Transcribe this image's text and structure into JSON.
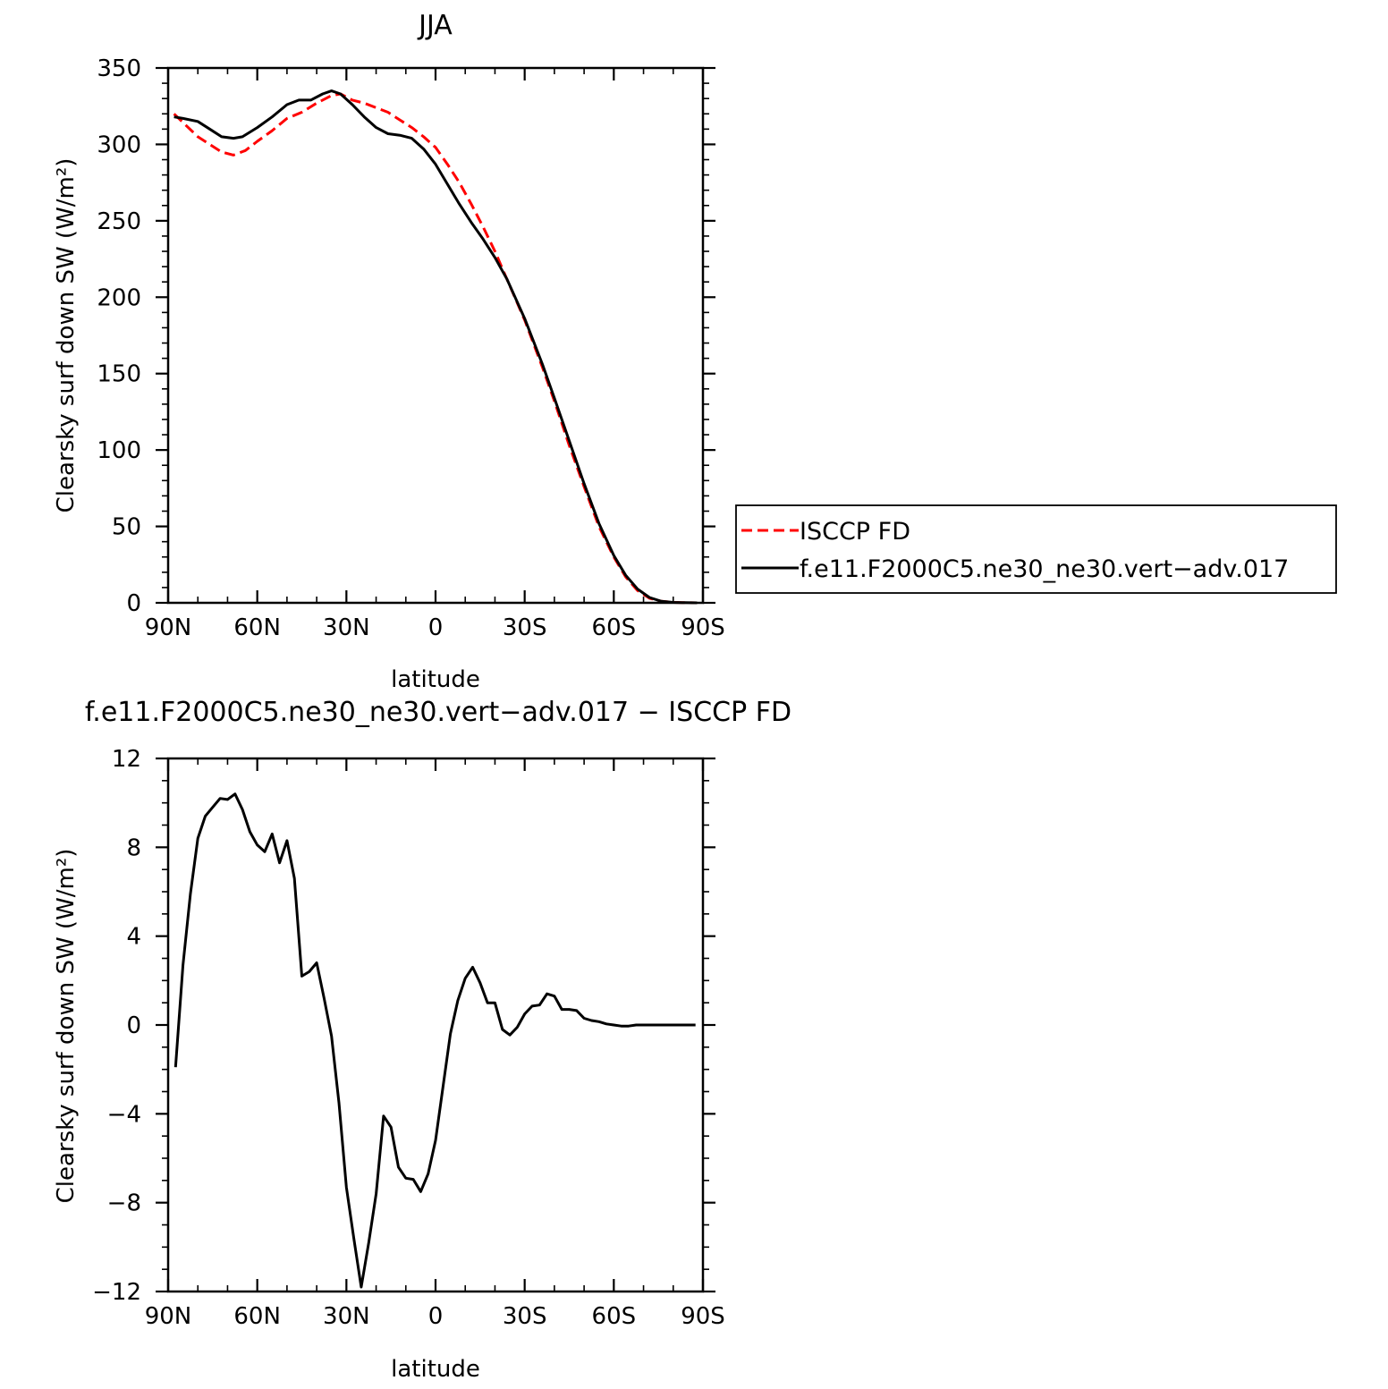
{
  "chart_data": [
    {
      "type": "line",
      "title": "JJA",
      "xlabel": "latitude",
      "ylabel": "Clearsky surf down SW (W/m²)",
      "xlim": [
        90,
        -90
      ],
      "ylim": [
        0,
        350
      ],
      "xticks": [
        90,
        60,
        30,
        0,
        -30,
        -60,
        -90
      ],
      "xtick_labels": [
        "90N",
        "60N",
        "30N",
        "0",
        "30S",
        "60S",
        "90S"
      ],
      "yticks": [
        0,
        50,
        100,
        150,
        200,
        250,
        300,
        350
      ],
      "ytick_labels": [
        "0",
        "50",
        "100",
        "150",
        "200",
        "250",
        "300",
        "350"
      ],
      "grid": false,
      "legend": "right",
      "series": [
        {
          "name": "ISCCP FD",
          "color": "#ff0000",
          "style": "dashed",
          "x": [
            88,
            80,
            72,
            68,
            64,
            60,
            55,
            50,
            45,
            40,
            35,
            32,
            28,
            24,
            20,
            16,
            12,
            8,
            4,
            0,
            -4,
            -8,
            -12,
            -16,
            -20,
            -24,
            -30,
            -36,
            -40,
            -45,
            -50,
            -55,
            -60,
            -64,
            -68,
            -72,
            -76,
            -80,
            -84,
            -88
          ],
          "y": [
            320,
            305,
            295,
            293,
            296,
            302,
            309,
            317,
            321,
            327,
            332,
            333,
            329,
            327,
            324,
            321,
            316,
            311,
            305,
            298,
            287,
            275,
            261,
            246,
            230,
            212,
            185,
            154,
            132,
            103,
            76,
            50,
            30,
            17,
            8,
            3,
            1,
            0.3,
            0.1,
            0
          ],
          "values": [
            320,
            305,
            295,
            293,
            296,
            302,
            309,
            317,
            321,
            327,
            332,
            333,
            329,
            327,
            324,
            321,
            316,
            311,
            305,
            298,
            287,
            275,
            261,
            246,
            230,
            212,
            185,
            154,
            132,
            103,
            76,
            50,
            30,
            17,
            8,
            3,
            1,
            0.3,
            0.1,
            0
          ]
        },
        {
          "name": "f.e11.F2000C5.ne30_ne30.vert−adv.017",
          "color": "#000000",
          "style": "solid",
          "x": [
            88,
            85,
            80,
            76,
            72,
            68,
            65,
            60,
            55,
            50,
            46,
            42,
            38,
            35,
            32,
            28,
            24,
            20,
            16,
            12,
            8,
            4,
            0,
            -4,
            -8,
            -12,
            -16,
            -20,
            -24,
            -30,
            -36,
            -40,
            -45,
            -50,
            -55,
            -60,
            -64,
            -68,
            -72,
            -76,
            -80,
            -84,
            -88
          ],
          "y": [
            318,
            317,
            315,
            310,
            305,
            304,
            305,
            311,
            318,
            326,
            329,
            329,
            333,
            335,
            333,
            326,
            318,
            311,
            307,
            306,
            304,
            297,
            287,
            274,
            261,
            249,
            238,
            226,
            212,
            186,
            156,
            134,
            106,
            78,
            52,
            31,
            18,
            9,
            3.5,
            1,
            0.3,
            0.1,
            0
          ],
          "values": [
            318,
            317,
            315,
            310,
            305,
            304,
            305,
            311,
            318,
            326,
            329,
            329,
            333,
            335,
            333,
            326,
            318,
            311,
            307,
            306,
            304,
            297,
            287,
            274,
            261,
            249,
            238,
            226,
            212,
            186,
            156,
            134,
            106,
            78,
            52,
            31,
            18,
            9,
            3.5,
            1,
            0.3,
            0.1,
            0
          ]
        }
      ]
    },
    {
      "type": "line",
      "title": "f.e11.F2000C5.ne30_ne30.vert−adv.017 − ISCCP FD",
      "xlabel": "latitude",
      "ylabel": "Clearsky surf down SW (W/m²)",
      "xlim": [
        90,
        -90
      ],
      "ylim": [
        -12,
        12
      ],
      "xticks": [
        90,
        60,
        30,
        0,
        -30,
        -60,
        -90
      ],
      "xtick_labels": [
        "90N",
        "60N",
        "30N",
        "0",
        "30S",
        "60S",
        "90S"
      ],
      "yticks": [
        -12,
        -8,
        -4,
        0,
        4,
        8,
        12
      ],
      "ytick_labels": [
        "−12",
        "−8",
        "−4",
        "0",
        "4",
        "8",
        "12"
      ],
      "grid": false,
      "series": [
        {
          "color": "#000000",
          "style": "solid",
          "x": [
            87.5,
            85,
            82.5,
            80,
            77.5,
            75,
            72.5,
            70,
            67.5,
            65,
            62.5,
            60,
            57.5,
            55,
            52.5,
            50,
            47.5,
            45,
            42.5,
            40,
            37.5,
            35,
            32.5,
            30,
            27.5,
            25,
            22.5,
            20,
            17.5,
            15,
            12.5,
            10,
            7.5,
            5,
            2.5,
            0,
            -2.5,
            -5,
            -7.5,
            -10,
            -12.5,
            -15,
            -17.5,
            -20,
            -22.5,
            -25,
            -27.5,
            -30,
            -32.5,
            -35,
            -37.5,
            -40,
            -42.5,
            -45,
            -47.5,
            -50,
            -52.5,
            -55,
            -57.5,
            -60,
            -62.5,
            -65,
            -67.5,
            -70,
            -72.5,
            -75,
            -77.5,
            -80,
            -82.5,
            -85,
            -87.5
          ],
          "y": [
            -1.9,
            2.7,
            5.9,
            8.4,
            9.4,
            9.8,
            10.2,
            10.15,
            10.4,
            9.7,
            8.7,
            8.1,
            7.8,
            8.6,
            7.3,
            8.3,
            6.6,
            2.2,
            2.4,
            2.8,
            1.2,
            -0.5,
            -3.5,
            -7.3,
            -9.6,
            -11.8,
            -9.8,
            -7.6,
            -4.1,
            -4.6,
            -6.4,
            -6.9,
            -6.95,
            -7.5,
            -6.7,
            -5.2,
            -2.8,
            -0.4,
            1.1,
            2.1,
            2.6,
            1.9,
            1.0,
            1.0,
            -0.2,
            -0.45,
            -0.1,
            0.5,
            0.85,
            0.9,
            1.4,
            1.3,
            0.7,
            0.7,
            0.65,
            0.3,
            0.2,
            0.15,
            0.05,
            0.0,
            -0.05,
            -0.05,
            0.0,
            0.0,
            0.0,
            0.0,
            0.0,
            0.0,
            0.0,
            0.0,
            0.0
          ],
          "values": [
            -1.9,
            2.7,
            5.9,
            8.4,
            9.4,
            9.8,
            10.2,
            10.15,
            10.4,
            9.7,
            8.7,
            8.1,
            7.8,
            8.6,
            7.3,
            8.3,
            6.6,
            2.2,
            2.4,
            2.8,
            1.2,
            -0.5,
            -3.5,
            -7.3,
            -9.6,
            -11.8,
            -9.8,
            -7.6,
            -4.1,
            -4.6,
            -6.4,
            -6.9,
            -6.95,
            -7.5,
            -6.7,
            -5.2,
            -2.8,
            -0.4,
            1.1,
            2.1,
            2.6,
            1.9,
            1.0,
            1.0,
            -0.2,
            -0.45,
            -0.1,
            0.5,
            0.85,
            0.9,
            1.4,
            1.3,
            0.7,
            0.7,
            0.65,
            0.3,
            0.2,
            0.15,
            0.05,
            0.0,
            -0.05,
            -0.05,
            0.0,
            0.0,
            0.0,
            0.0,
            0.0,
            0.0,
            0.0,
            0.0,
            0.0
          ]
        }
      ]
    }
  ]
}
